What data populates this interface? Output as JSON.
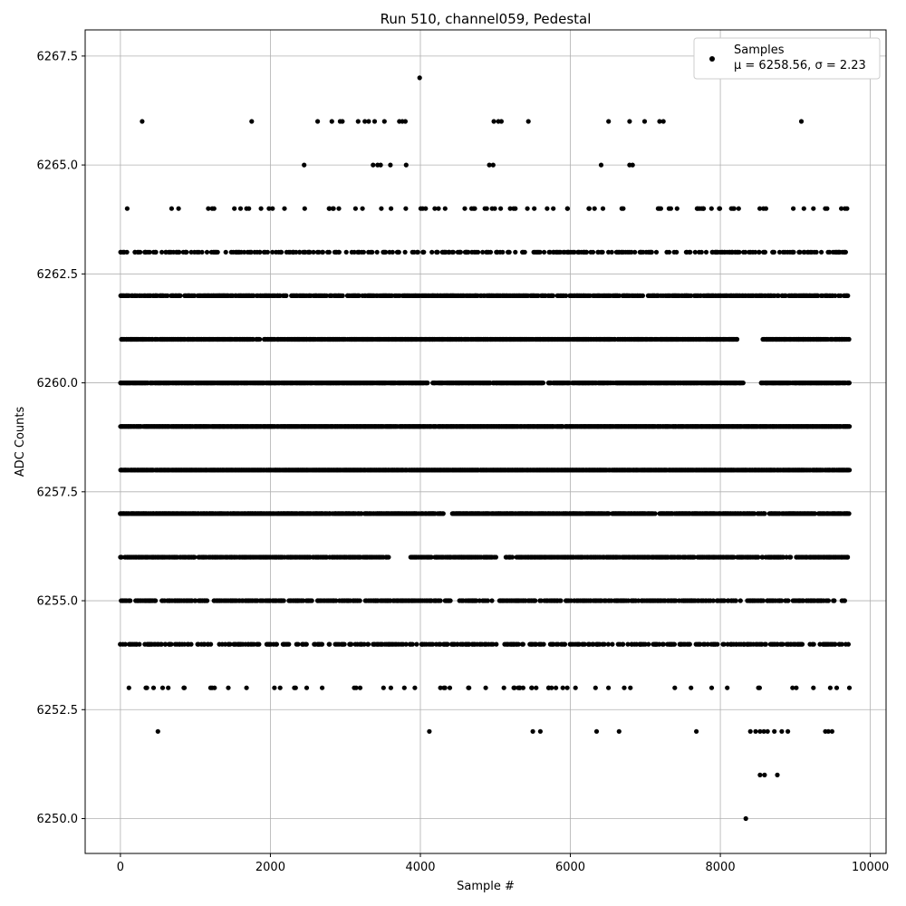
{
  "chart_data": {
    "type": "scatter",
    "title": "Run 510, channel059, Pedestal",
    "xlabel": "Sample #",
    "ylabel": "ADC Counts",
    "xlim": [
      -470,
      10210
    ],
    "ylim": [
      6249.2,
      6268.1
    ],
    "x_ticks": [
      0,
      2000,
      4000,
      6000,
      8000,
      10000
    ],
    "y_ticks": [
      6250.0,
      6252.5,
      6255.0,
      6257.5,
      6260.0,
      6262.5,
      6265.0,
      6267.5
    ],
    "x_tick_labels": [
      "0",
      "2000",
      "4000",
      "6000",
      "8000",
      "10000"
    ],
    "y_tick_labels": [
      "6250.0",
      "6252.5",
      "6255.0",
      "6257.5",
      "6260.0",
      "6262.5",
      "6265.0",
      "6267.5"
    ],
    "grid": true,
    "legend_position": "top-right",
    "marker_color": "#000000",
    "series": [
      {
        "name": "Samples",
        "label_line2": "μ = 6258.56, σ = 2.23",
        "n_samples": 9720,
        "points": [
          {
            "x": 3990,
            "y": 6267
          },
          {
            "x": 290,
            "y": 6266
          },
          {
            "x": 1750,
            "y": 6266
          },
          {
            "x": 2630,
            "y": 6266
          },
          {
            "x": 2820,
            "y": 6266
          },
          {
            "x": 2930,
            "y": 6266
          },
          {
            "x": 2960,
            "y": 6266
          },
          {
            "x": 3170,
            "y": 6266
          },
          {
            "x": 3260,
            "y": 6266
          },
          {
            "x": 3310,
            "y": 6266
          },
          {
            "x": 3390,
            "y": 6266
          },
          {
            "x": 3520,
            "y": 6266
          },
          {
            "x": 3720,
            "y": 6266
          },
          {
            "x": 3760,
            "y": 6266
          },
          {
            "x": 3800,
            "y": 6266
          },
          {
            "x": 4980,
            "y": 6266
          },
          {
            "x": 5040,
            "y": 6266
          },
          {
            "x": 5080,
            "y": 6266
          },
          {
            "x": 5440,
            "y": 6266
          },
          {
            "x": 6510,
            "y": 6266
          },
          {
            "x": 6790,
            "y": 6266
          },
          {
            "x": 6990,
            "y": 6266
          },
          {
            "x": 7190,
            "y": 6266
          },
          {
            "x": 7240,
            "y": 6266
          },
          {
            "x": 9080,
            "y": 6266
          },
          {
            "x": 2450,
            "y": 6265
          },
          {
            "x": 3370,
            "y": 6265
          },
          {
            "x": 3430,
            "y": 6265
          },
          {
            "x": 3470,
            "y": 6265
          },
          {
            "x": 3600,
            "y": 6265
          },
          {
            "x": 3810,
            "y": 6265
          },
          {
            "x": 4920,
            "y": 6265
          },
          {
            "x": 4970,
            "y": 6265
          },
          {
            "x": 6410,
            "y": 6265
          },
          {
            "x": 6790,
            "y": 6265
          },
          {
            "x": 6830,
            "y": 6265
          },
          {
            "x": 8340,
            "y": 6250
          },
          {
            "x": 8530,
            "y": 6251
          },
          {
            "x": 8590,
            "y": 6251
          },
          {
            "x": 8760,
            "y": 6251
          },
          {
            "x": 500,
            "y": 6252
          },
          {
            "x": 4120,
            "y": 6252
          },
          {
            "x": 5500,
            "y": 6252
          },
          {
            "x": 5600,
            "y": 6252
          },
          {
            "x": 6350,
            "y": 6252
          },
          {
            "x": 6650,
            "y": 6252
          },
          {
            "x": 7680,
            "y": 6252
          },
          {
            "x": 8400,
            "y": 6252
          },
          {
            "x": 8470,
            "y": 6252
          },
          {
            "x": 8530,
            "y": 6252
          },
          {
            "x": 8580,
            "y": 6252
          },
          {
            "x": 8630,
            "y": 6252
          },
          {
            "x": 8720,
            "y": 6252
          },
          {
            "x": 8820,
            "y": 6252
          },
          {
            "x": 8900,
            "y": 6252
          },
          {
            "x": 9400,
            "y": 6252
          },
          {
            "x": 9440,
            "y": 6252
          },
          {
            "x": 9490,
            "y": 6252
          }
        ]
      }
    ]
  }
}
